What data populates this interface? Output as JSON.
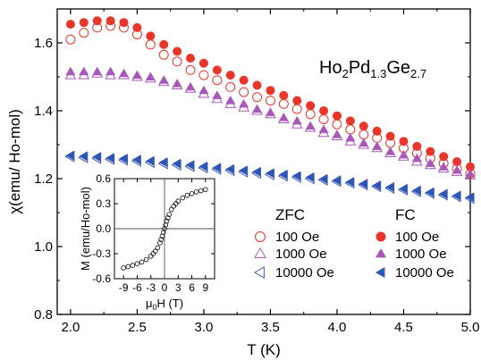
{
  "chart_data": [
    {
      "type": "scatter",
      "title": "",
      "annotation": {
        "base": "Ho",
        "sub1": "2",
        "mid1": "Pd",
        "sub2": "1.3",
        "mid2": "Ge",
        "sub3": "2.7"
      },
      "xlabel": "T (K)",
      "ylabel": "χ(emu/ Ho-mol)",
      "xlim": [
        1.9,
        5.0
      ],
      "ylim": [
        0.8,
        1.7
      ],
      "xticks": [
        2.0,
        2.5,
        3.0,
        3.5,
        4.0,
        4.5,
        5.0
      ],
      "xtick_labels": [
        "2.0",
        "2.5",
        "3.0",
        "3.5",
        "4.0",
        "4.5",
        "5.0"
      ],
      "yticks": [
        0.8,
        1.0,
        1.2,
        1.4,
        1.6
      ],
      "ytick_labels": [
        "0.8",
        "1.0",
        "1.2",
        "1.4",
        "1.6"
      ],
      "grid": false,
      "legend": {
        "zfc_title": "ZFC",
        "fc_title": "FC",
        "position": "center-right",
        "labels": [
          "100 Oe",
          "1000 Oe",
          "10000 Oe"
        ]
      },
      "x": [
        2.0,
        2.1,
        2.2,
        2.3,
        2.4,
        2.5,
        2.6,
        2.7,
        2.8,
        2.9,
        3.0,
        3.1,
        3.2,
        3.3,
        3.4,
        3.5,
        3.6,
        3.7,
        3.8,
        3.9,
        4.0,
        4.1,
        4.2,
        4.3,
        4.4,
        4.5,
        4.6,
        4.7,
        4.8,
        4.9,
        5.0
      ],
      "series": [
        {
          "name": "100 Oe",
          "group": "ZFC",
          "marker": "circle-open",
          "color": "#e8362a",
          "values": [
            1.61,
            1.63,
            1.645,
            1.65,
            1.645,
            1.625,
            1.595,
            1.565,
            1.545,
            1.52,
            1.505,
            1.49,
            1.47,
            1.455,
            1.44,
            1.43,
            1.42,
            1.405,
            1.39,
            1.375,
            1.36,
            1.345,
            1.33,
            1.32,
            1.305,
            1.29,
            1.275,
            1.26,
            1.245,
            1.23,
            1.215
          ]
        },
        {
          "name": "1000 Oe",
          "group": "ZFC",
          "marker": "triangle-up-open",
          "color": "#a858b8",
          "values": [
            1.505,
            1.505,
            1.51,
            1.505,
            1.505,
            1.5,
            1.495,
            1.485,
            1.475,
            1.465,
            1.45,
            1.435,
            1.42,
            1.41,
            1.4,
            1.39,
            1.375,
            1.36,
            1.35,
            1.335,
            1.325,
            1.31,
            1.3,
            1.29,
            1.275,
            1.265,
            1.25,
            1.24,
            1.23,
            1.22,
            1.21
          ]
        },
        {
          "name": "10000 Oe",
          "group": "ZFC",
          "marker": "triangle-left-open",
          "color": "#3a58b8",
          "values": [
            1.265,
            1.262,
            1.26,
            1.257,
            1.255,
            1.252,
            1.248,
            1.244,
            1.24,
            1.236,
            1.232,
            1.228,
            1.224,
            1.22,
            1.216,
            1.212,
            1.208,
            1.204,
            1.2,
            1.196,
            1.192,
            1.187,
            1.182,
            1.177,
            1.172,
            1.167,
            1.162,
            1.157,
            1.152,
            1.147,
            1.142
          ]
        },
        {
          "name": "100 Oe",
          "group": "FC",
          "marker": "circle-filled",
          "color": "#e8362a",
          "values": [
            1.655,
            1.66,
            1.665,
            1.665,
            1.66,
            1.645,
            1.62,
            1.595,
            1.575,
            1.555,
            1.54,
            1.52,
            1.505,
            1.49,
            1.475,
            1.46,
            1.445,
            1.43,
            1.415,
            1.4,
            1.385,
            1.37,
            1.355,
            1.34,
            1.325,
            1.31,
            1.295,
            1.28,
            1.265,
            1.25,
            1.235
          ]
        },
        {
          "name": "1000 Oe",
          "group": "FC",
          "marker": "triangle-up-filled",
          "color": "#a858b8",
          "values": [
            1.515,
            1.515,
            1.515,
            1.515,
            1.51,
            1.505,
            1.5,
            1.49,
            1.48,
            1.47,
            1.46,
            1.445,
            1.43,
            1.42,
            1.405,
            1.395,
            1.38,
            1.37,
            1.355,
            1.345,
            1.33,
            1.32,
            1.305,
            1.295,
            1.28,
            1.27,
            1.26,
            1.245,
            1.235,
            1.225,
            1.215
          ]
        },
        {
          "name": "10000 Oe",
          "group": "FC",
          "marker": "triangle-left-filled",
          "color": "#2e56b4",
          "values": [
            1.268,
            1.266,
            1.264,
            1.261,
            1.259,
            1.256,
            1.252,
            1.248,
            1.244,
            1.24,
            1.236,
            1.232,
            1.228,
            1.224,
            1.22,
            1.216,
            1.212,
            1.208,
            1.204,
            1.199,
            1.195,
            1.19,
            1.185,
            1.18,
            1.175,
            1.17,
            1.165,
            1.16,
            1.155,
            1.15,
            1.145
          ]
        }
      ]
    },
    {
      "type": "scatter",
      "title": "",
      "xlabel": {
        "pre": "μ",
        "sub": "0",
        "post": "H (T)"
      },
      "ylabel": "M (emu/Ho-mol)",
      "xlim": [
        -11,
        11
      ],
      "ylim": [
        -0.6,
        0.6
      ],
      "xticks": [
        -9,
        -6,
        -3,
        0,
        3,
        6,
        9
      ],
      "xtick_labels": [
        "-9",
        "-6",
        "-3",
        "0",
        "3",
        "6",
        "9"
      ],
      "yticks": [
        -0.6,
        -0.3,
        0.0,
        0.3,
        0.6
      ],
      "ytick_labels": [
        "-0.6",
        "-0.3",
        "0.0",
        "0.3",
        "0.6"
      ],
      "grid": false,
      "zero_lines": true,
      "series": [
        {
          "marker": "circle-open",
          "color": "#000000",
          "x": [
            -9,
            -8,
            -7,
            -6,
            -5,
            -4,
            -3,
            -2.5,
            -2,
            -1.5,
            -1,
            -0.75,
            -0.5,
            -0.25,
            0,
            0.25,
            0.5,
            0.75,
            1,
            1.5,
            2,
            2.5,
            3,
            4,
            5,
            6,
            7,
            8,
            9
          ],
          "y": [
            -0.47,
            -0.455,
            -0.44,
            -0.42,
            -0.4,
            -0.37,
            -0.33,
            -0.3,
            -0.27,
            -0.23,
            -0.17,
            -0.13,
            -0.09,
            -0.045,
            0,
            0.045,
            0.09,
            0.13,
            0.17,
            0.23,
            0.27,
            0.3,
            0.33,
            0.37,
            0.4,
            0.42,
            0.44,
            0.455,
            0.47
          ]
        }
      ]
    }
  ]
}
